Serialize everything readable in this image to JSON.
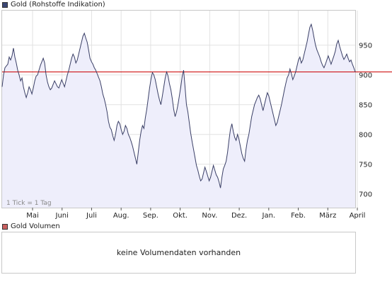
{
  "price_legend": {
    "label": "Gold (Rohstoffe Indikation)",
    "color": "#3b4775"
  },
  "volume_legend": {
    "label": "Gold Volumen",
    "color": "#c96060"
  },
  "tick_note": "1 Tick = 1 Tag",
  "volume_message": "keine Volumendaten vorhanden",
  "chart_data": {
    "type": "area",
    "x_tick_labels": [
      "Mai",
      "Juni",
      "Juli",
      "Aug.",
      "Sep.",
      "Okt.",
      "Nov.",
      "Dez.",
      "Jan.",
      "Feb.",
      "März",
      "April"
    ],
    "y_tick_labels": [
      950,
      900,
      850,
      800,
      750,
      700
    ],
    "ylim": [
      677,
      1008
    ],
    "reference_line": 905,
    "grid": true,
    "colors": {
      "line": "#3a3f66",
      "fill": "#eeeefb",
      "reference": "#cc0000",
      "grid": "#e2e2e2"
    },
    "series": [
      {
        "values": [
          880,
          900,
          912,
          915,
          918,
          930,
          925,
          932,
          945,
          930,
          920,
          908,
          900,
          890,
          895,
          880,
          870,
          862,
          870,
          880,
          875,
          868,
          878,
          890,
          898,
          900,
          908,
          916,
          922,
          928,
          920,
          900,
          888,
          880,
          875,
          878,
          884,
          890,
          885,
          880,
          878,
          885,
          892,
          886,
          880,
          890,
          900,
          908,
          918,
          928,
          935,
          930,
          920,
          925,
          935,
          945,
          955,
          965,
          970,
          962,
          955,
          942,
          928,
          922,
          918,
          912,
          908,
          902,
          896,
          890,
          880,
          868,
          860,
          850,
          838,
          822,
          812,
          808,
          798,
          790,
          800,
          815,
          822,
          818,
          808,
          800,
          805,
          815,
          810,
          800,
          795,
          788,
          780,
          770,
          760,
          750,
          770,
          790,
          805,
          815,
          810,
          828,
          842,
          860,
          878,
          893,
          904,
          900,
          892,
          880,
          868,
          858,
          850,
          865,
          880,
          895,
          905,
          898,
          885,
          875,
          860,
          842,
          830,
          838,
          850,
          865,
          880,
          898,
          908,
          880,
          850,
          838,
          820,
          802,
          788,
          775,
          762,
          748,
          740,
          730,
          722,
          725,
          735,
          745,
          738,
          730,
          722,
          728,
          738,
          748,
          740,
          732,
          728,
          720,
          710,
          728,
          742,
          748,
          755,
          770,
          790,
          808,
          818,
          805,
          795,
          790,
          800,
          792,
          780,
          768,
          760,
          755,
          775,
          790,
          800,
          815,
          830,
          840,
          850,
          856,
          862,
          866,
          860,
          850,
          840,
          850,
          860,
          870,
          865,
          855,
          845,
          835,
          825,
          815,
          820,
          830,
          840,
          850,
          862,
          874,
          885,
          895,
          900,
          910,
          902,
          892,
          898,
          905,
          915,
          925,
          930,
          920,
          925,
          935,
          945,
          955,
          968,
          980,
          985,
          975,
          962,
          950,
          942,
          936,
          930,
          922,
          916,
          912,
          918,
          925,
          932,
          925,
          918,
          925,
          932,
          940,
          952,
          958,
          948,
          940,
          932,
          926,
          930,
          935,
          928,
          922,
          925,
          918,
          912,
          905
        ]
      }
    ]
  }
}
